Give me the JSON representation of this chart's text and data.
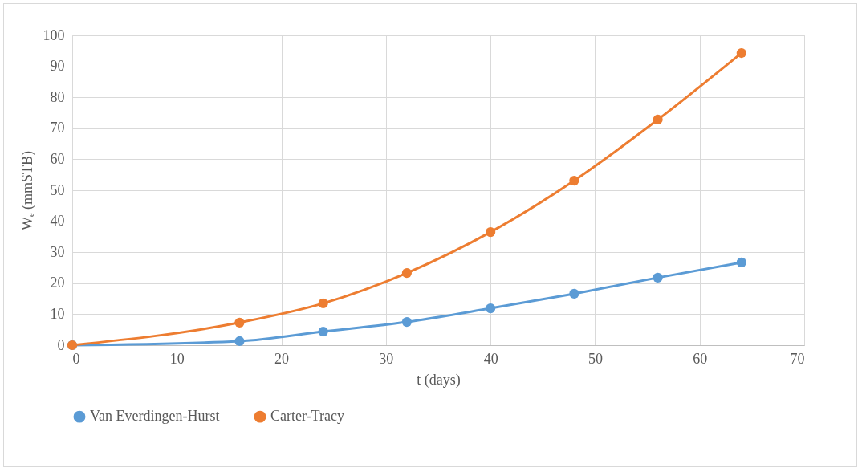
{
  "chart_data": {
    "type": "line",
    "xlabel": "t (days)",
    "ylabel": "Wₑ (mmSTB)",
    "x": [
      0,
      16,
      24,
      32,
      40,
      48,
      56,
      64
    ],
    "series": [
      {
        "name": "Van Everdingen-Hurst",
        "color": "#5b9bd5",
        "values": [
          0,
          1.3,
          4.4,
          7.5,
          11.9,
          16.6,
          21.8,
          26.7
        ]
      },
      {
        "name": "Carter-Tracy",
        "color": "#ed7d31",
        "values": [
          0,
          7.3,
          13.5,
          23.3,
          36.5,
          53.1,
          72.8,
          94.3
        ]
      }
    ],
    "xlim": [
      0,
      70
    ],
    "xticks": [
      0,
      10,
      20,
      30,
      40,
      50,
      60,
      70
    ],
    "ylim": [
      0,
      100
    ],
    "yticks": [
      0,
      10,
      20,
      30,
      40,
      50,
      60,
      70,
      80,
      90,
      100
    ],
    "grid": true,
    "legend": "bottom",
    "marker": "circle",
    "line_style": "solid"
  }
}
